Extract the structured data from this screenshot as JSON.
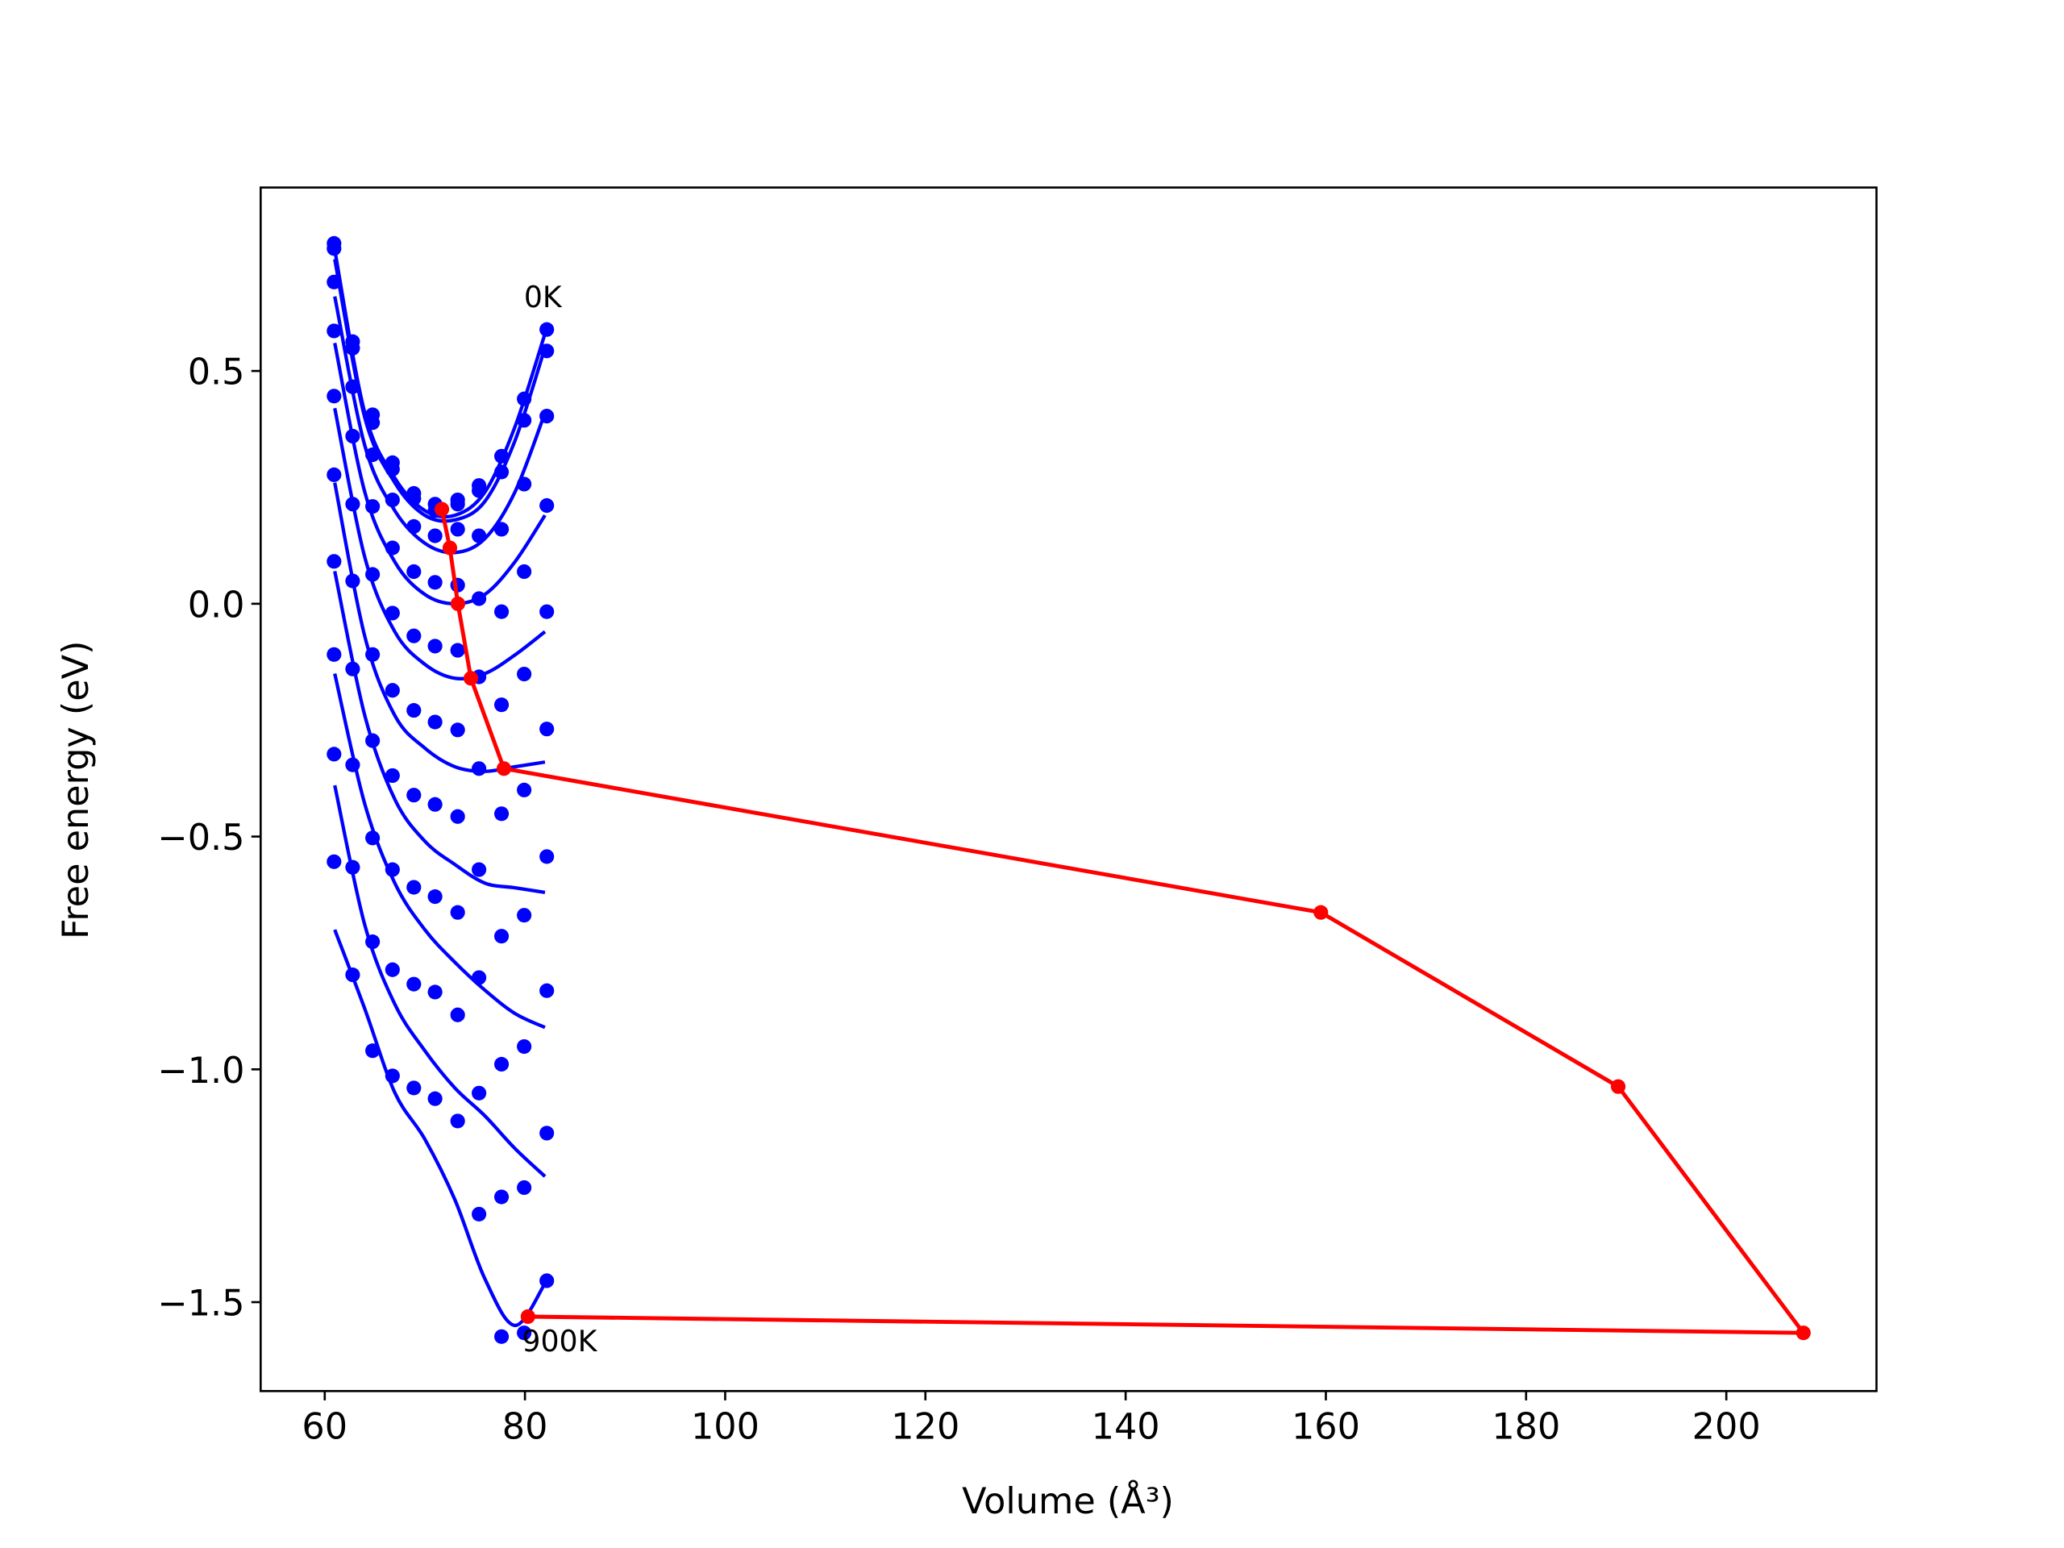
{
  "chart_data": {
    "type": "scatter",
    "x_label": "Volume (Å³)",
    "y_label": "Free energy (eV)",
    "xlim": [
      53.6,
      215.0
    ],
    "ylim": [
      -1.691,
      0.894
    ],
    "xticks": [
      60,
      80,
      100,
      120,
      140,
      160,
      180,
      200
    ],
    "yticks": [
      {
        "value": -1.5,
        "label": "−1.5"
      },
      {
        "value": -1.0,
        "label": "−1.0"
      },
      {
        "value": -0.5,
        "label": "−0.5"
      },
      {
        "value": 0,
        "label": "0.0"
      },
      0.5
    ],
    "grid": false,
    "x": [
      60.93,
      62.79,
      64.78,
      66.77,
      68.9,
      71.02,
      73.28,
      75.41,
      77.66,
      79.92,
      82.18
    ],
    "series": [
      {
        "color": "#0000ff",
        "values": [
          0.774,
          0.563,
          0.406,
          0.303,
          0.237,
          0.214,
          0.223,
          0.254,
          0.317,
          0.44,
          0.589
        ]
      },
      {
        "color": "#0000ff",
        "values": [
          0.763,
          0.549,
          0.389,
          0.289,
          0.226,
          0.2,
          0.214,
          0.243,
          0.283,
          0.394,
          0.543
        ]
      },
      {
        "color": "#0000ff",
        "values": [
          0.691,
          0.466,
          0.32,
          0.223,
          0.166,
          0.146,
          0.16,
          0.146,
          0.16,
          0.257,
          0.403
        ]
      },
      {
        "color": "#0000ff",
        "values": [
          0.586,
          0.36,
          0.209,
          0.12,
          0.069,
          0.046,
          0.04,
          0.011,
          -0.017,
          0.069,
          0.211
        ]
      },
      {
        "color": "#0000ff",
        "values": [
          0.446,
          0.214,
          0.063,
          -0.02,
          -0.069,
          -0.091,
          -0.1,
          -0.157,
          -0.217,
          -0.151,
          -0.017
        ]
      },
      {
        "color": "#0000ff",
        "values": [
          0.277,
          0.049,
          -0.109,
          -0.186,
          -0.229,
          -0.254,
          -0.271,
          -0.354,
          -0.451,
          -0.4,
          -0.269
        ]
      },
      {
        "color": "#0000ff",
        "values": [
          0.091,
          -0.14,
          -0.294,
          -0.369,
          -0.411,
          -0.431,
          -0.457,
          -0.571,
          -0.714,
          -0.669,
          -0.543
        ]
      },
      {
        "color": "#0000ff",
        "values": [
          -0.109,
          -0.346,
          -0.503,
          -0.571,
          -0.609,
          -0.629,
          -0.663,
          -0.803,
          -0.989,
          -0.951,
          -0.831
        ]
      },
      {
        "color": "#0000ff",
        "values": [
          -0.323,
          -0.566,
          -0.726,
          -0.786,
          -0.817,
          -0.834,
          -0.883,
          -1.051,
          -1.274,
          -1.254,
          -1.137
        ]
      },
      {
        "color": "#0000ff",
        "values": [
          -0.554,
          -0.797,
          -0.96,
          -1.014,
          -1.04,
          -1.063,
          -1.111,
          -1.311,
          -1.574,
          -1.566,
          -1.454
        ]
      }
    ],
    "fit_x": [
      61,
      64,
      67,
      70,
      73,
      76,
      79,
      82
    ],
    "fits": [
      {
        "color": "#0000ff",
        "values": [
          0.76,
          0.41,
          0.27,
          0.2,
          0.19,
          0.24,
          0.38,
          0.58
        ]
      },
      {
        "color": "#0000ff",
        "values": [
          0.74,
          0.4,
          0.26,
          0.19,
          0.18,
          0.22,
          0.35,
          0.55
        ]
      },
      {
        "color": "#0000ff",
        "values": [
          0.66,
          0.34,
          0.2,
          0.13,
          0.11,
          0.14,
          0.24,
          0.41
        ]
      },
      {
        "color": "#0000ff",
        "values": [
          0.56,
          0.24,
          0.09,
          0.02,
          0.0,
          0.02,
          0.09,
          0.19
        ]
      },
      {
        "color": "#0000ff",
        "values": [
          0.42,
          0.1,
          -0.06,
          -0.13,
          -0.16,
          -0.15,
          -0.11,
          -0.06
        ]
      },
      {
        "color": "#0000ff",
        "values": [
          0.26,
          -0.07,
          -0.24,
          -0.31,
          -0.35,
          -0.36,
          -0.35,
          -0.34
        ]
      },
      {
        "color": "#0000ff",
        "values": [
          0.07,
          -0.24,
          -0.42,
          -0.51,
          -0.56,
          -0.6,
          -0.61,
          -0.62
        ]
      },
      {
        "color": "#0000ff",
        "values": [
          -0.15,
          -0.43,
          -0.6,
          -0.7,
          -0.77,
          -0.83,
          -0.88,
          -0.91
        ]
      },
      {
        "color": "#0000ff",
        "values": [
          -0.39,
          -0.69,
          -0.86,
          -0.96,
          -1.04,
          -1.1,
          -1.17,
          -1.23
        ]
      },
      {
        "color": "#0000ff",
        "values": [
          -0.7,
          -0.87,
          -1.05,
          -1.15,
          -1.28,
          -1.45,
          -1.55,
          -1.46
        ]
      }
    ],
    "path": {
      "color": "#ff0000",
      "x": [
        71.7,
        72.5,
        73.3,
        74.6,
        77.9,
        159.5,
        189.2,
        207.7,
        80.3
      ],
      "values": [
        0.203,
        0.12,
        0.0,
        -0.16,
        -0.354,
        -0.663,
        -1.037,
        -1.566,
        -1.531
      ]
    },
    "annotations": [
      {
        "text": "0K",
        "x": 79.9,
        "y": 0.663
      },
      {
        "text": "900K",
        "x": 79.7,
        "y": -1.58
      }
    ]
  }
}
